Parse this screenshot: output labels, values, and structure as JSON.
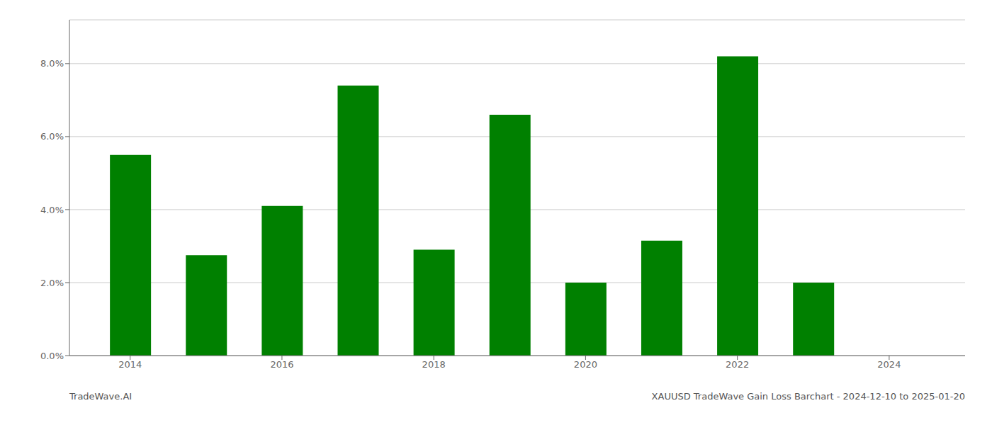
{
  "chart_data": {
    "type": "bar",
    "title": "XAUUSD TradeWave Gain Loss Barchart - 2024-12-10 to 2025-01-20",
    "annotations": [
      "TradeWave.AI"
    ],
    "x": [
      2014,
      2015,
      2016,
      2017,
      2018,
      2019,
      2020,
      2021,
      2022,
      2023,
      2024
    ],
    "values": [
      0.055,
      0.0275,
      0.041,
      0.074,
      0.029,
      0.066,
      0.02,
      0.0315,
      0.082,
      0.02,
      0.0
    ],
    "color": "#008000",
    "xlim": [
      2013.2,
      2025.0
    ],
    "xticks": [
      2014,
      2016,
      2018,
      2020,
      2022,
      2024
    ],
    "ylim": [
      0.0,
      0.092
    ],
    "yticks": [
      {
        "value": 0.0,
        "label": "0.0%"
      },
      {
        "value": 0.02,
        "label": "2.0%"
      },
      {
        "value": 0.04,
        "label": "4.0%"
      },
      {
        "value": 0.06,
        "label": "6.0%"
      },
      {
        "value": 0.08,
        "label": "8.0%"
      }
    ],
    "grid": true
  }
}
